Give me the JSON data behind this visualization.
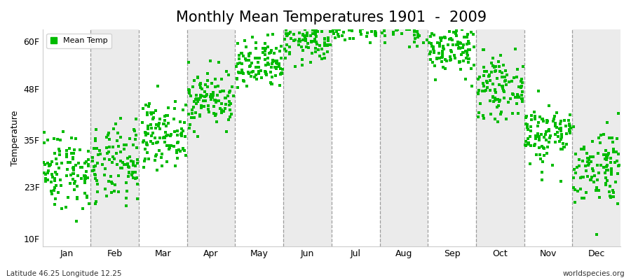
{
  "title": "Monthly Mean Temperatures 1901  -  2009",
  "ylabel": "Temperature",
  "yticks": [
    10,
    23,
    35,
    48,
    60
  ],
  "ytick_labels": [
    "10F",
    "23F",
    "35F",
    "48F",
    "60F"
  ],
  "ylim": [
    8,
    63
  ],
  "months": [
    "Jan",
    "Feb",
    "Mar",
    "Apr",
    "May",
    "Jun",
    "Jul",
    "Aug",
    "Sep",
    "Oct",
    "Nov",
    "Dec"
  ],
  "dot_color": "#00BB00",
  "legend_label": "Mean Temp",
  "bottom_left": "Latitude 46.25 Longitude 12.25",
  "bottom_right": "worldspecies.org",
  "background_color": "#ffffff",
  "alt_band_color": "#ebebeb",
  "title_fontsize": 15,
  "axis_label_fontsize": 9,
  "tick_fontsize": 9,
  "num_years": 109,
  "seed": 42,
  "monthly_means_c": [
    -2.5,
    -2.0,
    2.5,
    7.5,
    12.0,
    16.0,
    18.5,
    18.5,
    14.5,
    9.0,
    2.5,
    -2.0
  ],
  "monthly_std_c": [
    2.8,
    2.8,
    2.2,
    2.0,
    1.8,
    1.8,
    1.6,
    1.6,
    1.8,
    2.0,
    2.2,
    2.8
  ]
}
